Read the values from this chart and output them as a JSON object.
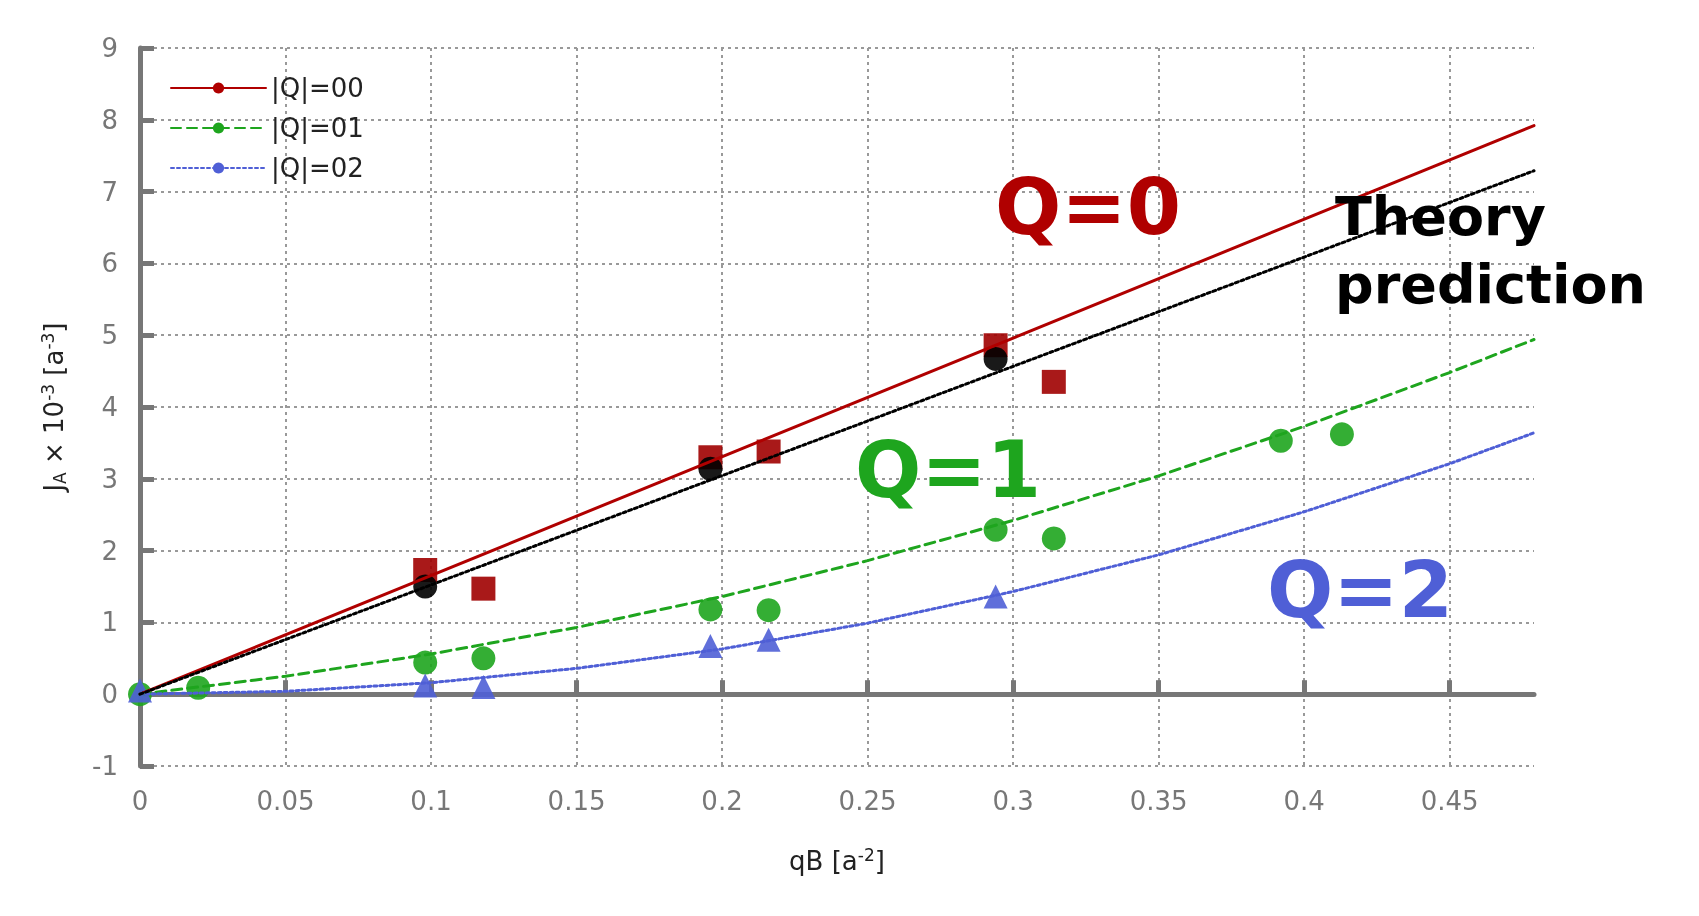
{
  "chart_data": {
    "type": "scatter",
    "xlabel": "qB [a$^{-2}$]",
    "ylabel": "J$_{A}$ × 10$^{-3}$ [a$^{-3}$]",
    "xlim": [
      0,
      0.479
    ],
    "xticks": [
      0,
      0.05,
      0.1,
      0.15,
      0.2,
      0.25,
      0.3,
      0.35,
      0.4,
      0.45
    ],
    "ylim": [
      -1,
      9
    ],
    "yticks": [
      -1,
      0,
      1,
      2,
      3,
      4,
      5,
      6,
      7,
      8,
      9
    ],
    "grid": true,
    "legend": "top left",
    "series": [
      {
        "type": "line",
        "name": "|Q|=00",
        "color": "#b00000",
        "line_style": "solid",
        "marker": "none",
        "x": [
          0,
          0.479
        ],
        "values": [
          0,
          7.92
        ]
      },
      {
        "type": "line",
        "name": "|Q|=01",
        "color": "#1ea51e",
        "line_style": "dashed",
        "marker": "none",
        "x": [
          0,
          0.05,
          0.1,
          0.15,
          0.2,
          0.25,
          0.3,
          0.35,
          0.4,
          0.45,
          0.479
        ],
        "values": [
          0,
          0.25,
          0.56,
          0.93,
          1.36,
          1.86,
          2.42,
          3.04,
          3.73,
          4.48,
          4.94
        ]
      },
      {
        "type": "line",
        "name": "|Q|=02",
        "color": "#4f5fd6",
        "line_style": "dotted",
        "marker": "none",
        "x": [
          0,
          0.05,
          0.1,
          0.15,
          0.2,
          0.25,
          0.3,
          0.35,
          0.4,
          0.45,
          0.479
        ],
        "values": [
          0,
          0.04,
          0.16,
          0.36,
          0.63,
          0.99,
          1.43,
          1.94,
          2.54,
          3.21,
          3.64
        ]
      },
      {
        "type": "line",
        "color": "#000000",
        "line_style": "dotted",
        "marker": "none",
        "x": [
          0,
          0.479
        ],
        "values": [
          0,
          7.29
        ]
      },
      {
        "color": "#a00000",
        "marker": "square",
        "x": [
          0.098,
          0.196,
          0.294
        ],
        "values": [
          1.73,
          3.3,
          4.86
        ]
      },
      {
        "color": "#a00000",
        "marker": "square",
        "x": [
          0.118,
          0.216,
          0.314
        ],
        "values": [
          1.47,
          3.38,
          4.35
        ]
      },
      {
        "color": "#000000",
        "marker": "circle",
        "x": [
          0.098,
          0.196,
          0.294
        ],
        "values": [
          1.5,
          3.14,
          4.67
        ]
      },
      {
        "color": "#1ea51e",
        "marker": "circle",
        "x": [
          0,
          0.098,
          0.196,
          0.294,
          0.392
        ],
        "values": [
          0,
          0.44,
          1.18,
          2.29,
          3.53
        ]
      },
      {
        "color": "#1ea51e",
        "marker": "circle",
        "x": [
          0.02,
          0.118,
          0.216,
          0.314,
          0.413
        ],
        "values": [
          0.09,
          0.5,
          1.17,
          2.17,
          3.62
        ]
      },
      {
        "color": "#4f5fd6",
        "marker": "triangle",
        "x": [
          0,
          0.098,
          0.196,
          0.294
        ],
        "values": [
          0.05,
          0.12,
          0.67,
          1.36
        ]
      },
      {
        "color": "#4f5fd6",
        "marker": "triangle",
        "x": [
          0.118,
          0.216
        ],
        "values": [
          0.1,
          0.76
        ]
      }
    ],
    "annotations": [
      "Q=0",
      "Q=1",
      "Q=2",
      "Theory prediction"
    ]
  }
}
